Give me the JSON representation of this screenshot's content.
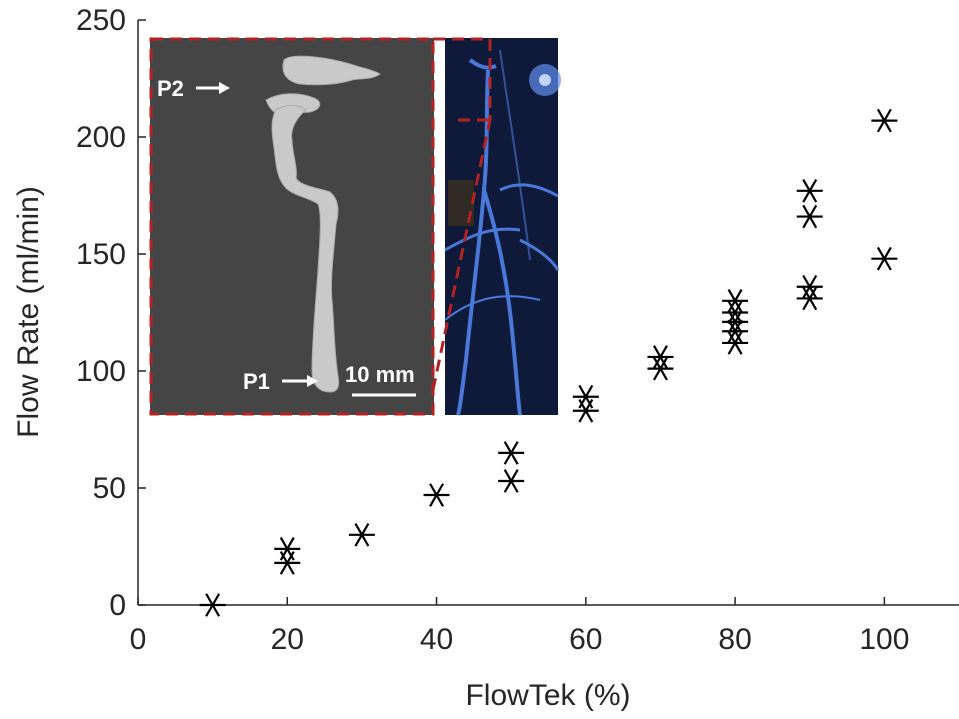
{
  "chart_data": {
    "type": "scatter",
    "xlabel": "FlowTek (%)",
    "ylabel": "Flow Rate (ml/min)",
    "xlim": [
      0,
      110
    ],
    "ylim": [
      0,
      250
    ],
    "xticks": [
      0,
      20,
      40,
      60,
      80,
      100
    ],
    "yticks": [
      0,
      50,
      100,
      150,
      200,
      250
    ],
    "grid": false,
    "marker": "asterisk",
    "series": [
      {
        "points": [
          {
            "x": 10,
            "y": 0
          },
          {
            "x": 20,
            "y": 18
          },
          {
            "x": 20,
            "y": 24
          },
          {
            "x": 30,
            "y": 30
          },
          {
            "x": 40,
            "y": 47
          },
          {
            "x": 50,
            "y": 53
          },
          {
            "x": 50,
            "y": 65
          },
          {
            "x": 60,
            "y": 83
          },
          {
            "x": 60,
            "y": 89
          },
          {
            "x": 70,
            "y": 101
          },
          {
            "x": 70,
            "y": 106
          },
          {
            "x": 80,
            "y": 112
          },
          {
            "x": 80,
            "y": 117
          },
          {
            "x": 80,
            "y": 121
          },
          {
            "x": 80,
            "y": 125
          },
          {
            "x": 80,
            "y": 130
          },
          {
            "x": 90,
            "y": 131
          },
          {
            "x": 90,
            "y": 136
          },
          {
            "x": 90,
            "y": 166
          },
          {
            "x": 90,
            "y": 177
          },
          {
            "x": 100,
            "y": 148
          },
          {
            "x": 100,
            "y": 207
          }
        ]
      }
    ],
    "inset": {
      "annotations": [
        "P2",
        "P1"
      ],
      "scale_bar_label": "10 mm"
    }
  },
  "colors": {
    "marker": "#000000",
    "axis": "#262626",
    "inset_background": "#454545",
    "vessel": "#c9c9c9",
    "photo_background": "#0f1a3a",
    "tubing": "#4a78d8",
    "dashed_border": "#b22222"
  }
}
